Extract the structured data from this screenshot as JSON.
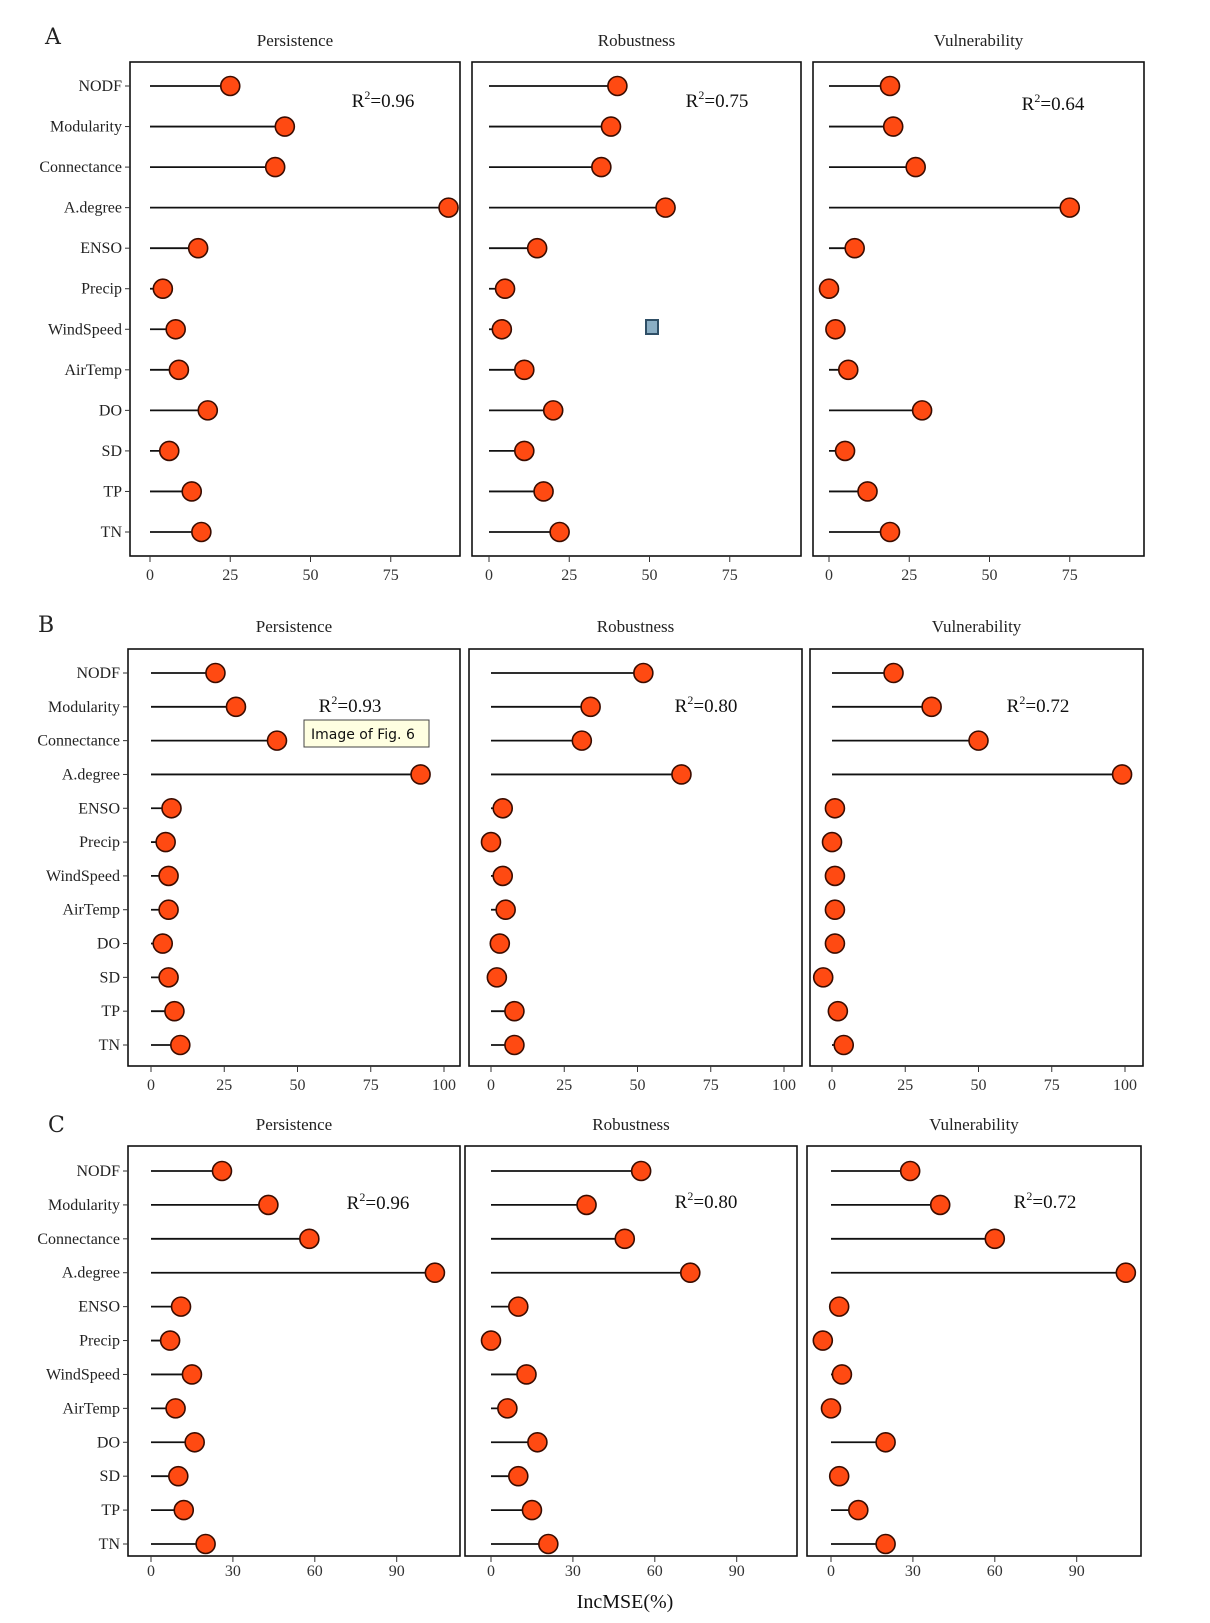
{
  "chart_data": [
    {
      "type": "lollipop",
      "panel": "A",
      "categories": [
        "NODF",
        "Modularity",
        "Connectance",
        "A.degree",
        "ENSO",
        "Precip",
        "WindSpeed",
        "AirTemp",
        "DO",
        "SD",
        "TP",
        "TN"
      ],
      "xticks": [
        0,
        25,
        50,
        75
      ],
      "facets": [
        {
          "title": "Persistence",
          "r2": "0.96",
          "xlim": [
            -5,
            97
          ],
          "values": [
            25,
            42,
            39,
            93,
            15,
            4,
            8,
            9,
            18,
            6,
            13,
            16
          ]
        },
        {
          "title": "Robustness",
          "r2": "0.75",
          "xlim": [
            -5,
            97
          ],
          "values": [
            40,
            38,
            35,
            55,
            15,
            5,
            4,
            11,
            20,
            11,
            17,
            22
          ]
        },
        {
          "title": "Vulnerability",
          "r2": "0.64",
          "xlim": [
            -5,
            97
          ],
          "values": [
            19,
            20,
            27,
            75,
            8,
            0,
            2,
            6,
            29,
            5,
            12,
            19
          ]
        }
      ]
    },
    {
      "type": "lollipop",
      "panel": "B",
      "categories": [
        "NODF",
        "Modularity",
        "Connectance",
        "A.degree",
        "ENSO",
        "Precip",
        "WindSpeed",
        "AirTemp",
        "DO",
        "SD",
        "TP",
        "TN"
      ],
      "xticks": [
        0,
        25,
        50,
        75,
        100
      ],
      "facets": [
        {
          "title": "Persistence",
          "r2": "0.93",
          "xlim": [
            -7,
            103
          ],
          "values": [
            22,
            29,
            43,
            92,
            7,
            5,
            6,
            6,
            4,
            6,
            8,
            10
          ]
        },
        {
          "title": "Robustness",
          "r2": "0.80",
          "xlim": [
            -7,
            103
          ],
          "values": [
            52,
            34,
            31,
            65,
            4,
            0,
            4,
            5,
            3,
            2,
            8,
            8
          ]
        },
        {
          "title": "Vulnerability",
          "r2": "0.72",
          "xlim": [
            -7,
            103
          ],
          "values": [
            21,
            34,
            50,
            99,
            1,
            0,
            1,
            1,
            1,
            -3,
            2,
            4
          ]
        }
      ]
    },
    {
      "type": "lollipop",
      "panel": "C",
      "categories": [
        "NODF",
        "Modularity",
        "Connectance",
        "A.degree",
        "ENSO",
        "Precip",
        "WindSpeed",
        "AirTemp",
        "DO",
        "SD",
        "TP",
        "TN"
      ],
      "xticks": [
        0,
        30,
        60,
        90
      ],
      "facets": [
        {
          "title": "Persistence",
          "r2": "0.96",
          "xlim": [
            -5,
            110
          ],
          "values": [
            26,
            43,
            58,
            104,
            11,
            7,
            15,
            9,
            16,
            10,
            12,
            20
          ]
        },
        {
          "title": "Robustness",
          "r2": "0.80",
          "xlim": [
            -5,
            110
          ],
          "values": [
            55,
            35,
            49,
            73,
            10,
            0,
            13,
            6,
            17,
            10,
            15,
            21
          ]
        },
        {
          "title": "Vulnerability",
          "r2": "0.72",
          "xlim": [
            -5,
            110
          ],
          "values": [
            29,
            40,
            60,
            108,
            3,
            -3,
            4,
            0,
            20,
            3,
            10,
            20
          ]
        }
      ]
    }
  ],
  "xlabel": "IncMSE(%)",
  "tooltip": "Image of Fig. 6",
  "marker_color": "#ff4a12",
  "marker_edge": "#3a0c00",
  "selection_color": "#8aaec4"
}
